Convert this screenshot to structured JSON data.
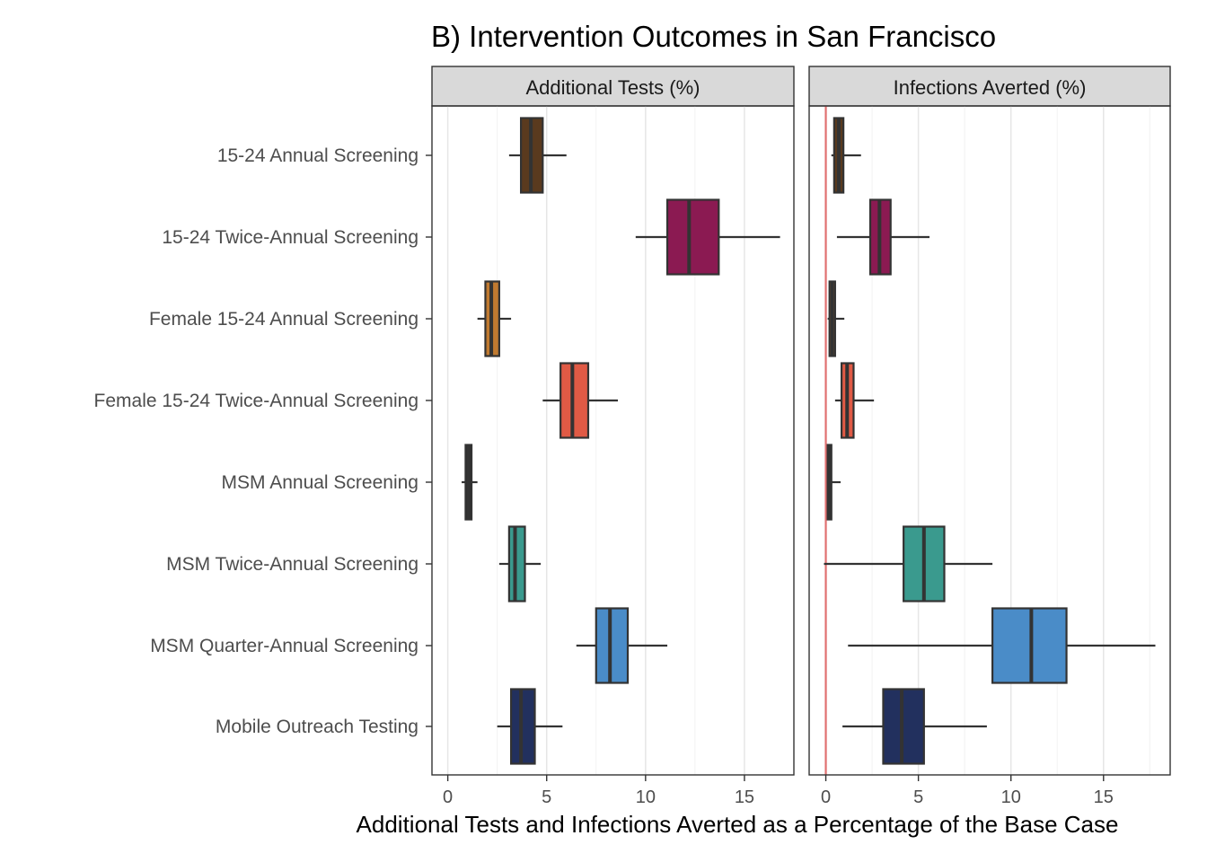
{
  "chart_data": {
    "type": "boxplot",
    "title": "B) Intervention Outcomes in San Francisco",
    "xlabel": "Additional Tests and Infections Averted as a Percentage of the Base Case",
    "ylabel": "",
    "grid": true,
    "categories": [
      "15-24 Annual Screening",
      "15-24 Twice-Annual Screening",
      "Female 15-24 Annual Screening",
      "Female 15-24 Twice-Annual Screening",
      "MSM Annual Screening",
      "MSM Twice-Annual Screening",
      "MSM Quarter-Annual Screening",
      "Mobile Outreach Testing"
    ],
    "colors": [
      "#5a3a1e",
      "#8b1a52",
      "#c07a30",
      "#e05a45",
      "#2b2b2b",
      "#3a9a8e",
      "#4a8cc8",
      "#22305e"
    ],
    "reference_line": {
      "x": 0,
      "color": "#e07070"
    },
    "panels": [
      {
        "name": "Additional Tests (%)",
        "xlim": [
          -0.8,
          17.5
        ],
        "xticks": [
          0,
          5,
          10,
          15
        ],
        "boxes": [
          {
            "whisker_low": 3.1,
            "q1": 3.7,
            "median": 4.2,
            "q3": 4.8,
            "whisker_high": 6.0
          },
          {
            "whisker_low": 9.5,
            "q1": 11.1,
            "median": 12.2,
            "q3": 13.7,
            "whisker_high": 16.8
          },
          {
            "whisker_low": 1.5,
            "q1": 1.9,
            "median": 2.2,
            "q3": 2.6,
            "whisker_high": 3.2
          },
          {
            "whisker_low": 4.8,
            "q1": 5.7,
            "median": 6.3,
            "q3": 7.1,
            "whisker_high": 8.6
          },
          {
            "whisker_low": 0.7,
            "q1": 0.9,
            "median": 1.05,
            "q3": 1.2,
            "whisker_high": 1.5
          },
          {
            "whisker_low": 2.6,
            "q1": 3.1,
            "median": 3.4,
            "q3": 3.9,
            "whisker_high": 4.7
          },
          {
            "whisker_low": 6.5,
            "q1": 7.5,
            "median": 8.2,
            "q3": 9.1,
            "whisker_high": 11.1
          },
          {
            "whisker_low": 2.5,
            "q1": 3.2,
            "median": 3.7,
            "q3": 4.4,
            "whisker_high": 5.8
          }
        ]
      },
      {
        "name": "Infections Averted (%)",
        "xlim": [
          -0.9,
          18.6
        ],
        "xticks": [
          0,
          5,
          10,
          15
        ],
        "boxes": [
          {
            "whisker_low": 0.3,
            "q1": 0.45,
            "median": 0.7,
            "q3": 0.95,
            "whisker_high": 1.9
          },
          {
            "whisker_low": 0.6,
            "q1": 2.4,
            "median": 2.9,
            "q3": 3.5,
            "whisker_high": 5.6
          },
          {
            "whisker_low": 0.1,
            "q1": 0.2,
            "median": 0.35,
            "q3": 0.5,
            "whisker_high": 1.0
          },
          {
            "whisker_low": 0.5,
            "q1": 0.85,
            "median": 1.15,
            "q3": 1.5,
            "whisker_high": 2.6
          },
          {
            "whisker_low": 0.05,
            "q1": 0.1,
            "median": 0.2,
            "q3": 0.3,
            "whisker_high": 0.8
          },
          {
            "whisker_low": -0.1,
            "q1": 4.2,
            "median": 5.3,
            "q3": 6.4,
            "whisker_high": 9.0
          },
          {
            "whisker_low": 1.2,
            "q1": 9.0,
            "median": 11.1,
            "q3": 13.0,
            "whisker_high": 17.8
          },
          {
            "whisker_low": 0.9,
            "q1": 3.1,
            "median": 4.1,
            "q3": 5.3,
            "whisker_high": 8.7
          }
        ]
      }
    ]
  }
}
